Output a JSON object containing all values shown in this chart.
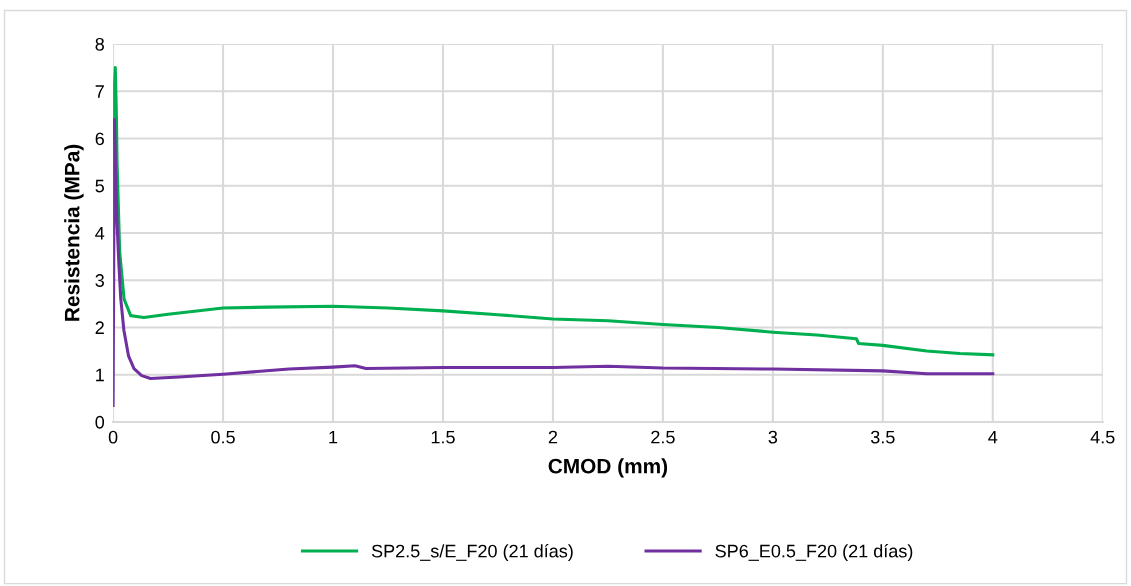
{
  "chart_data": {
    "type": "line",
    "xlabel": "CMOD (mm)",
    "ylabel": "Resistencia (MPa)",
    "xlim": [
      0,
      4.5
    ],
    "ylim": [
      0,
      8
    ],
    "xticks": [
      0,
      0.5,
      1,
      1.5,
      2,
      2.5,
      3,
      3.5,
      4,
      4.5
    ],
    "yticks": [
      0,
      1,
      2,
      3,
      4,
      5,
      6,
      7,
      8
    ],
    "grid": true,
    "legend": "bottom",
    "marker": "none",
    "line_style": "solid",
    "series": [
      {
        "name": "SP2.5_s/E_F20 (21 días)",
        "color": "#00b050",
        "x": [
          0,
          0.005,
          0.01,
          0.015,
          0.018,
          0.03,
          0.05,
          0.08,
          0.14,
          0.25,
          0.4,
          0.5,
          0.7,
          1,
          1.25,
          1.5,
          1.75,
          2,
          2.25,
          2.5,
          2.75,
          3,
          3.2,
          3.38,
          3.39,
          3.5,
          3.7,
          3.85,
          4
        ],
        "values": [
          6.0,
          7.0,
          7.5,
          6.5,
          5.5,
          3.6,
          2.6,
          2.25,
          2.21,
          2.28,
          2.36,
          2.41,
          2.43,
          2.45,
          2.41,
          2.35,
          2.27,
          2.18,
          2.14,
          2.06,
          2.0,
          1.9,
          1.84,
          1.76,
          1.66,
          1.62,
          1.5,
          1.45,
          1.42
        ]
      },
      {
        "name": "SP6_E0.5_F20 (21 días)",
        "color": "#7030a0",
        "x": [
          0,
          0.003,
          0.006,
          0.012,
          0.018,
          0.026,
          0.035,
          0.049,
          0.07,
          0.095,
          0.13,
          0.17,
          0.3,
          0.5,
          0.8,
          1,
          1.1,
          1.15,
          1.5,
          2,
          2.25,
          2.5,
          3,
          3.5,
          3.7,
          4
        ],
        "values": [
          0.35,
          3.5,
          6.4,
          5.2,
          4.2,
          3.36,
          2.6,
          1.94,
          1.4,
          1.13,
          0.98,
          0.92,
          0.95,
          1.01,
          1.12,
          1.16,
          1.19,
          1.13,
          1.15,
          1.15,
          1.18,
          1.14,
          1.12,
          1.08,
          1.02,
          1.02
        ]
      }
    ]
  }
}
